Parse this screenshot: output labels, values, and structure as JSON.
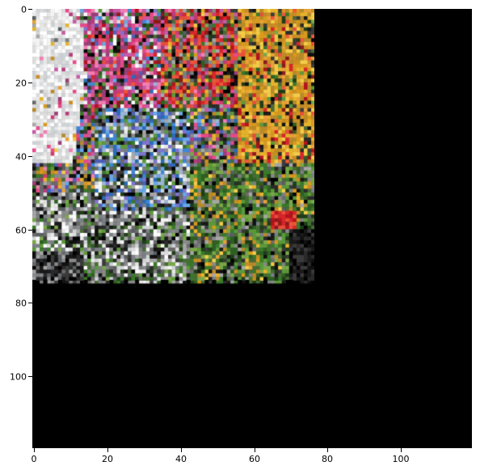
{
  "axes": {
    "x_ticks": [
      "0",
      "20",
      "40",
      "60",
      "80",
      "100"
    ],
    "y_ticks": [
      "0",
      "20",
      "40",
      "60",
      "80",
      "100"
    ]
  },
  "image": {
    "description_colors": {
      "background": "#000000",
      "upper_left_bright": "#f4f4f4",
      "flowers_pink": "#e64b8c",
      "flowers_red": "#d9262b",
      "flowers_yellow": "#e6b42d",
      "foliage_green": "#3a7a2a",
      "sky_blue": "#3f86d6"
    }
  }
}
